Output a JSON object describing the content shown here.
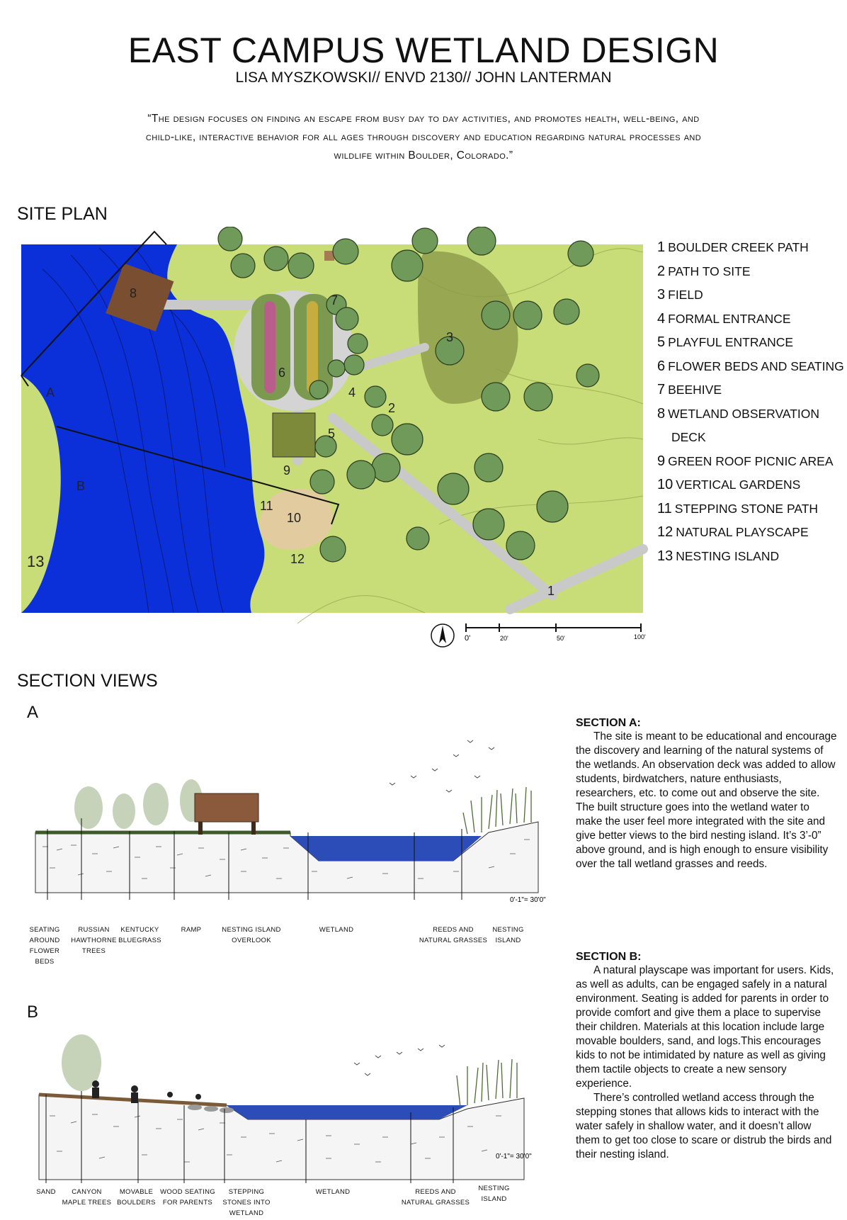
{
  "header": {
    "title": "EAST CAMPUS WETLAND DESIGN",
    "subtitle": "LISA MYSZKOWSKI// ENVD 2130// JOHN LANTERMAN",
    "quote": "“The design focuses on finding an escape from busy day to day activities, and promotes health, well-being, and child-like, interactive behavior for all ages through discovery and education regarding natural processes and wildlife within Boulder, Colorado.”"
  },
  "site_plan": {
    "heading": "SITE PLAN",
    "legend": [
      {
        "num": "1",
        "label": "BOULDER CREEK PATH"
      },
      {
        "num": "2",
        "label": "PATH TO SITE"
      },
      {
        "num": "3",
        "label": "FIELD"
      },
      {
        "num": "4",
        "label": "FORMAL ENTRANCE"
      },
      {
        "num": "5",
        "label": "PLAYFUL ENTRANCE"
      },
      {
        "num": "6",
        "label": "FLOWER BEDS AND SEATING"
      },
      {
        "num": "7",
        "label": "BEEHIVE"
      },
      {
        "num": "8",
        "label": "WETLAND OBSERVATION",
        "cont": "DECK"
      },
      {
        "num": "9",
        "label": "GREEN ROOF PICNIC AREA"
      },
      {
        "num": "10",
        "label": "VERTICAL GARDENS"
      },
      {
        "num": "11",
        "label": "STEPPING STONE PATH"
      },
      {
        "num": "12",
        "label": "NATURAL PLAYSCAPE"
      },
      {
        "num": "13",
        "label": "NESTING ISLAND"
      }
    ],
    "map_markers": {
      "m1": "1",
      "m2": "2",
      "m3": "3",
      "m4": "4",
      "m5": "5",
      "m6": "6",
      "m7": "7",
      "m8": "8",
      "m9": "9",
      "m10": "10",
      "m11": "11",
      "m12": "12",
      "m13": "13",
      "secA": "A",
      "secB": "B"
    },
    "scale_labels": [
      "0'",
      "20'",
      "50'",
      "100'"
    ],
    "colors": {
      "water": "#0b2fd8",
      "grass": "#c8dc78",
      "field": "#8c9a48",
      "path": "#c9c9c9",
      "tree": "#6f9a5a"
    }
  },
  "section_views": {
    "heading": "SECTION VIEWS",
    "a": {
      "letter": "A",
      "scale": "0'-1\"= 30'0\"",
      "labels": [
        [
          "SEATING",
          "AROUND",
          "FLOWER BEDS"
        ],
        [
          "RUSSIAN",
          "HAWTHORNE",
          "TREES"
        ],
        [
          "KENTUCKY",
          "BLUEGRASS"
        ],
        [
          "RAMP"
        ],
        [
          "NESTING ISLAND",
          "OVERLOOK"
        ],
        [
          "WETLAND"
        ],
        [
          "REEDS AND",
          "NATURAL GRASSES"
        ],
        [
          "NESTING",
          "ISLAND"
        ]
      ],
      "text_title": "SECTION A:",
      "text": "The site is meant to be educational and encourage the discovery and learning of the natural systems of the wetlands. An observation deck was added to allow students, birdwatchers, nature enthusiasts, researchers, etc. to come out and observe the site. The built structure goes into the wetland water to make the user feel more integrated with the site and give better views to the bird nesting island. It’s 3’-0” above ground, and is high enough to ensure visibility over the tall wetland grasses and reeds."
    },
    "b": {
      "letter": "B",
      "scale": "0'-1\"= 30'0\"",
      "labels": [
        [
          "SAND"
        ],
        [
          "CANYON",
          "MAPLE TREES"
        ],
        [
          "MOVABLE",
          "BOULDERS"
        ],
        [
          "WOOD SEATING",
          "FOR PARENTS"
        ],
        [
          "STEPPING",
          "STONES INTO",
          "WETLAND"
        ],
        [
          "WETLAND"
        ],
        [
          "REEDS AND",
          "NATURAL GRASSES"
        ],
        [
          "NESTING",
          "ISLAND"
        ]
      ],
      "text_title": "SECTION B:",
      "text_p1": "A natural playscape was important for users. Kids, as well as adults, can be engaged safely in a natural environment. Seating is added for parents in order to provide comfort and give them a place to supervise their children. Materials at this location include large movable boulders, sand, and logs.This encourages kids to not be intimidated by nature as well as giving them tactile objects to create a new sensory experience.",
      "text_p2": "There’s controlled wetland access through the stepping stones that allows kids to interact with the water safely in shallow water, and it doesn’t allow them to get too close to scare or distrub the birds and their nesting island."
    }
  }
}
